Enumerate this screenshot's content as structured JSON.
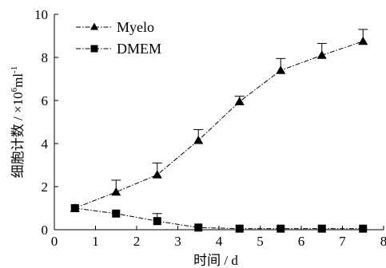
{
  "chart_data": {
    "type": "line",
    "xlabel": "时间 / d",
    "ylabel_main": "细胞计数 / ×10",
    "ylabel_sup": "6",
    "ylabel_unit": "ml",
    "ylabel_sup2": "-1",
    "xlim": [
      0,
      8
    ],
    "ylim": [
      0,
      10
    ],
    "xticks": [
      "0",
      "1",
      "2",
      "3",
      "4",
      "5",
      "6",
      "7",
      "8"
    ],
    "yticks": [
      "0",
      "2",
      "4",
      "6",
      "8",
      "10"
    ],
    "grid": false,
    "legend_position": "top-left",
    "series": [
      {
        "name": "Myelo",
        "marker": "triangle",
        "x": [
          0.5,
          1.5,
          2.5,
          3.5,
          4.5,
          5.5,
          6.5,
          7.5
        ],
        "y": [
          1.0,
          1.75,
          2.55,
          4.15,
          5.95,
          7.4,
          8.1,
          8.75
        ],
        "err": [
          0.0,
          0.55,
          0.55,
          0.5,
          0.25,
          0.55,
          0.55,
          0.55
        ]
      },
      {
        "name": "DMEM",
        "marker": "square",
        "x": [
          0.5,
          1.5,
          2.5,
          3.5,
          4.5,
          5.5,
          6.5,
          7.5
        ],
        "y": [
          1.0,
          0.75,
          0.4,
          0.1,
          0.05,
          0.05,
          0.05,
          0.05
        ],
        "err": [
          0.0,
          0.0,
          0.35,
          0.0,
          0.0,
          0.0,
          0.0,
          0.0
        ]
      }
    ]
  }
}
